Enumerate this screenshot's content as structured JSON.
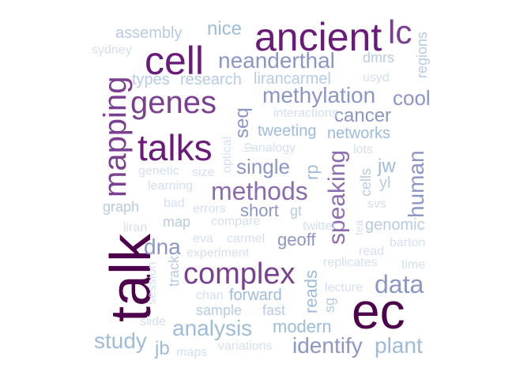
{
  "palette": {
    "darkest": "#4d004b",
    "dark": "#6a1a78",
    "mid_dark": "#7a3f91",
    "mid": "#8c6bb1",
    "mid_light": "#8c96c6",
    "light": "#9ebcda",
    "lighter": "#b8cbe2",
    "lightest": "#d4dff0"
  },
  "words": [
    {
      "text": "talk",
      "color": "#4d004b"
    },
    {
      "text": "ec",
      "color": "#4d004b"
    },
    {
      "text": "ancient",
      "color": "#6a1a78"
    },
    {
      "text": "cell",
      "color": "#6a1a78"
    },
    {
      "text": "lc",
      "color": "#7a3f91"
    },
    {
      "text": "talks",
      "color": "#6a1a78"
    },
    {
      "text": "genes",
      "color": "#7a3f91"
    },
    {
      "text": "mapping",
      "color": "#7a3f91"
    },
    {
      "text": "complex",
      "color": "#7a3f91"
    },
    {
      "text": "speaking",
      "color": "#8c6bb1"
    },
    {
      "text": "methods",
      "color": "#8c6bb1"
    },
    {
      "text": "methylation",
      "color": "#8c96c6"
    },
    {
      "text": "neanderthal",
      "color": "#8c96c6"
    },
    {
      "text": "data",
      "color": "#8c96c6"
    },
    {
      "text": "human",
      "color": "#8c96c6"
    },
    {
      "text": "cool",
      "color": "#8c96c6"
    },
    {
      "text": "identify",
      "color": "#8c96c6"
    },
    {
      "text": "plant",
      "color": "#9ebcda"
    },
    {
      "text": "analysis",
      "color": "#9ebcda"
    },
    {
      "text": "study",
      "color": "#9ebcda"
    },
    {
      "text": "dna",
      "color": "#8c96c6"
    },
    {
      "text": "single",
      "color": "#8c96c6"
    },
    {
      "text": "cancer",
      "color": "#8c96c6"
    },
    {
      "text": "nice",
      "color": "#9ebcda"
    },
    {
      "text": "seq",
      "color": "#8c96c6"
    },
    {
      "text": "modern",
      "color": "#9ebcda"
    },
    {
      "text": "reads",
      "color": "#9ebcda"
    },
    {
      "text": "geoff",
      "color": "#8c96c6"
    },
    {
      "text": "short",
      "color": "#8c96c6"
    },
    {
      "text": "forward",
      "color": "#9ebcda"
    },
    {
      "text": "tweeting",
      "color": "#9ebcda"
    },
    {
      "text": "networks",
      "color": "#9ebcda"
    },
    {
      "text": "regions",
      "color": "#b8cbe2"
    },
    {
      "text": "assembly",
      "color": "#b8cbe2"
    },
    {
      "text": "dmrs",
      "color": "#b8cbe2"
    },
    {
      "text": "types",
      "color": "#b8cbe2"
    },
    {
      "text": "research",
      "color": "#b8cbe2"
    },
    {
      "text": "lirancarmel",
      "color": "#b8cbe2"
    },
    {
      "text": "jw",
      "color": "#9ebcda"
    },
    {
      "text": "yl",
      "color": "#b8cbe2"
    },
    {
      "text": "rp",
      "color": "#9ebcda"
    },
    {
      "text": "cells",
      "color": "#b8cbe2"
    },
    {
      "text": "graph",
      "color": "#b8cbe2"
    },
    {
      "text": "map",
      "color": "#b8cbe2"
    },
    {
      "text": "gt",
      "color": "#b8cbe2"
    },
    {
      "text": "genomic",
      "color": "#b8cbe2"
    },
    {
      "text": "sample",
      "color": "#b8cbe2"
    },
    {
      "text": "fast",
      "color": "#b8cbe2"
    },
    {
      "text": "sg",
      "color": "#b8cbe2"
    },
    {
      "text": "track",
      "color": "#b8cbe2"
    },
    {
      "text": "jb",
      "color": "#9ebcda"
    },
    {
      "text": "svs",
      "color": "#d4dff0"
    },
    {
      "text": "sydney",
      "color": "#d4dff0"
    },
    {
      "text": "usyd",
      "color": "#d4dff0"
    },
    {
      "text": "interactions",
      "color": "#d4dff0"
    },
    {
      "text": "optical",
      "color": "#d4dff0"
    },
    {
      "text": "ip",
      "color": "#d4dff0"
    },
    {
      "text": "analogy",
      "color": "#d4dff0"
    },
    {
      "text": "lots",
      "color": "#d4dff0"
    },
    {
      "text": "genetic",
      "color": "#d4dff0"
    },
    {
      "text": "size",
      "color": "#d4dff0"
    },
    {
      "text": "learning",
      "color": "#d4dff0"
    },
    {
      "text": "bad",
      "color": "#d4dff0"
    },
    {
      "text": "errors",
      "color": "#d4dff0"
    },
    {
      "text": "compare",
      "color": "#d4dff0"
    },
    {
      "text": "twitter",
      "color": "#d4dff0"
    },
    {
      "text": "tea",
      "color": "#d4dff0"
    },
    {
      "text": "liran",
      "color": "#d4dff0"
    },
    {
      "text": "eva",
      "color": "#d4dff0"
    },
    {
      "text": "carmel",
      "color": "#d4dff0"
    },
    {
      "text": "barton",
      "color": "#d4dff0"
    },
    {
      "text": "experiment",
      "color": "#d4dff0"
    },
    {
      "text": "read",
      "color": "#d4dff0"
    },
    {
      "text": "replicates",
      "color": "#d4dff0"
    },
    {
      "text": "time",
      "color": "#d4dff0"
    },
    {
      "text": "session",
      "color": "#d4dff0"
    },
    {
      "text": "lecture",
      "color": "#d4dff0"
    },
    {
      "text": "chan",
      "color": "#d4dff0"
    },
    {
      "text": "slide",
      "color": "#d4dff0"
    },
    {
      "text": "maps",
      "color": "#d4dff0"
    },
    {
      "text": "variations",
      "color": "#d4dff0"
    }
  ]
}
